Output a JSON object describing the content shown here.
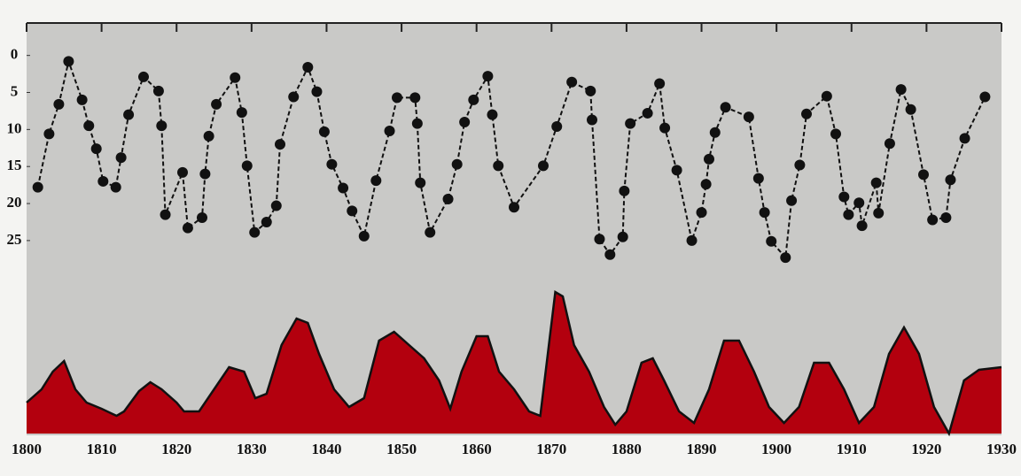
{
  "chart_data": [
    {
      "type": "line",
      "xlim": [
        1800,
        1930
      ],
      "ylim": [
        -4.5,
        28
      ],
      "y_inverted": true,
      "yticks": [
        0,
        5,
        10,
        15,
        20,
        25
      ],
      "x": [
        1801.5,
        1803,
        1804.3,
        1805.6,
        1807.4,
        1808.3,
        1809.3,
        1810.2,
        1811.9,
        1812.6,
        1813.6,
        1815.6,
        1817.6,
        1818,
        1818.5,
        1820.8,
        1821.5,
        1823.4,
        1823.8,
        1824.3,
        1825.3,
        1827.8,
        1828.7,
        1829.4,
        1830.4,
        1832,
        1833.3,
        1833.8,
        1835.6,
        1837.5,
        1838.7,
        1839.7,
        1840.7,
        1842.2,
        1843.4,
        1845,
        1846.6,
        1848.4,
        1849.4,
        1851.8,
        1852.1,
        1852.5,
        1853.8,
        1856.2,
        1857.4,
        1858.4,
        1859.6,
        1861.5,
        1862.1,
        1862.9,
        1865,
        1868.9,
        1870.7,
        1872.7,
        1875.2,
        1875.4,
        1876.4,
        1877.8,
        1879.5,
        1879.7,
        1880.5,
        1882.8,
        1884.4,
        1885.1,
        1886.7,
        1888.7,
        1890,
        1890.6,
        1891,
        1891.8,
        1893.2,
        1896.3,
        1897.6,
        1898.4,
        1899.3,
        1901.2,
        1902,
        1903.1,
        1904,
        1906.7,
        1907.9,
        1909,
        1909.6,
        1911,
        1911.4,
        1913.3,
        1913.6,
        1915.1,
        1916.6,
        1917.9,
        1919.6,
        1920.8,
        1922.6,
        1923.2,
        1925.1,
        1927.8
      ],
      "series": [
        {
          "color": "#111111",
          "values": [
            17.8,
            10.6,
            6.6,
            0.8,
            6,
            9.5,
            12.6,
            17,
            17.8,
            13.8,
            8,
            2.9,
            4.8,
            9.5,
            21.5,
            15.8,
            23.3,
            21.9,
            16,
            10.9,
            6.6,
            3,
            7.7,
            14.9,
            23.9,
            22.5,
            20.3,
            12,
            5.6,
            1.6,
            4.9,
            10.3,
            14.7,
            17.9,
            21,
            24.4,
            16.9,
            10.2,
            5.7,
            5.7,
            9.2,
            17.2,
            23.9,
            19.4,
            14.7,
            9,
            6,
            2.8,
            8,
            14.9,
            20.5,
            14.9,
            9.6,
            3.6,
            4.8,
            8.7,
            24.8,
            26.9,
            24.5,
            18.3,
            9.2,
            7.8,
            3.8,
            9.8,
            15.5,
            25,
            21.2,
            17.4,
            14,
            10.4,
            7,
            8.3,
            16.6,
            21.2,
            25.1,
            27.3,
            19.6,
            14.8,
            7.9,
            5.5,
            10.6,
            19.1,
            21.5,
            19.9,
            23,
            17.2,
            21.3,
            11.9,
            4.6,
            7.3,
            16.1,
            22.2,
            21.9,
            16.8,
            11.2,
            5.6
          ]
        }
      ]
    },
    {
      "type": "area",
      "xlim": [
        1800,
        1930
      ],
      "ylim": [
        0,
        170
      ],
      "xticks": [
        1800,
        1810,
        1820,
        1830,
        1840,
        1850,
        1860,
        1870,
        1880,
        1890,
        1900,
        1910,
        1920,
        1930
      ],
      "x": [
        1800,
        1802,
        1803.5,
        1805,
        1806.5,
        1808,
        1810,
        1812,
        1813,
        1815,
        1816.5,
        1818,
        1820,
        1821,
        1823,
        1825,
        1827,
        1829,
        1830.5,
        1832,
        1834,
        1836,
        1837.5,
        1839,
        1841,
        1843,
        1845,
        1847,
        1849,
        1851,
        1853,
        1855,
        1856.5,
        1858,
        1860,
        1861.5,
        1863,
        1865,
        1867,
        1868.5,
        1869.5,
        1870.5,
        1871.5,
        1873,
        1875,
        1877,
        1878.5,
        1880,
        1882,
        1883.5,
        1885,
        1887,
        1889,
        1891,
        1893,
        1895,
        1897,
        1899,
        1901,
        1903,
        1905,
        1907,
        1909,
        1911,
        1913,
        1915,
        1917,
        1919,
        1921,
        1923,
        1925,
        1927,
        1930
      ],
      "series": [
        {
          "color": "#b3000e",
          "values": [
            35,
            50,
            70,
            82,
            50,
            35,
            28,
            20,
            25,
            48,
            58,
            50,
            35,
            25,
            25,
            50,
            75,
            70,
            40,
            45,
            100,
            130,
            125,
            90,
            50,
            30,
            40,
            105,
            115,
            100,
            85,
            60,
            28,
            70,
            110,
            110,
            70,
            50,
            25,
            20,
            90,
            160,
            155,
            100,
            70,
            30,
            10,
            25,
            80,
            85,
            60,
            25,
            12,
            50,
            105,
            105,
            70,
            30,
            12,
            30,
            80,
            80,
            50,
            12,
            30,
            90,
            120,
            90,
            30,
            0,
            60,
            72,
            75
          ]
        }
      ]
    }
  ]
}
